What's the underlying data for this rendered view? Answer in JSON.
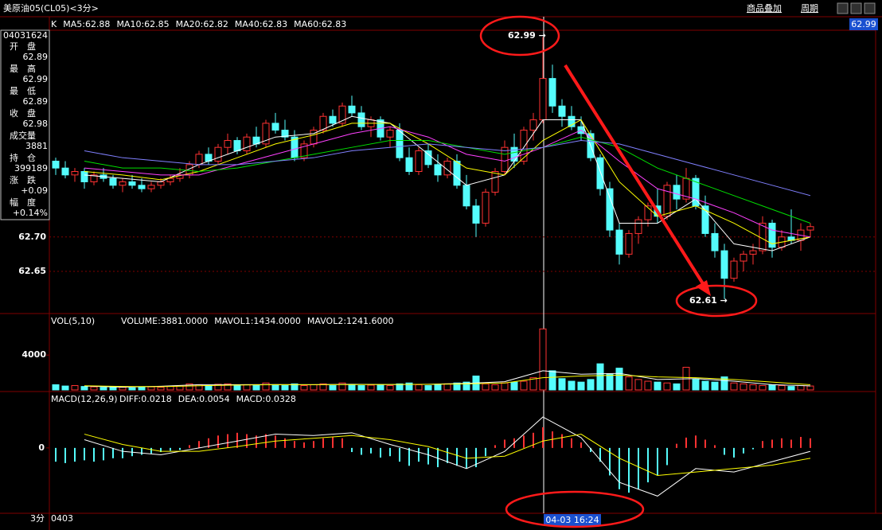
{
  "header": {
    "title": "美原油05(CL05)<3分>",
    "links": [
      "商品叠加",
      "周期"
    ],
    "price_box": "62.99"
  },
  "ma_header": {
    "prefix": "K",
    "items": [
      {
        "label": "MA5:62.88",
        "color": "#ffffff"
      },
      {
        "label": "MA10:62.85",
        "color": "#ffff00"
      },
      {
        "label": "MA20:62.82",
        "color": "#ff40ff"
      },
      {
        "label": "MA40:62.83",
        "color": "#00e000"
      },
      {
        "label": "MA60:62.83",
        "color": "#8080ff"
      }
    ]
  },
  "info": {
    "code": "04031624",
    "items": [
      {
        "label": "开　盘",
        "value": "62.89",
        "color": "#ffffff"
      },
      {
        "label": "最　高",
        "value": "62.99",
        "color": "#ff4040"
      },
      {
        "label": "最　低",
        "value": "62.89",
        "color": "#ffffff"
      },
      {
        "label": "收　盘",
        "value": "62.98",
        "color": "#ff4040"
      },
      {
        "label": "成交量",
        "value": "3881",
        "color": "#ffff00"
      },
      {
        "label": "持　仓",
        "value": "399189",
        "color": "#ffff00"
      },
      {
        "label": "涨　跌",
        "value": "+0.09",
        "color": "#ff4040"
      },
      {
        "label": "幅　度",
        "value": "+0.14%",
        "color": "#ff4040"
      }
    ]
  },
  "price_pane": {
    "type": "candlestick",
    "ylim": [
      62.59,
      63.0
    ],
    "yticks": [
      {
        "value": 62.7,
        "label": "62.70"
      },
      {
        "value": 62.65,
        "label": "62.65"
      }
    ],
    "up_color": "#ff3232",
    "down_color": "#54fcfc",
    "candles": [
      [
        62.81,
        62.815,
        62.79,
        62.8
      ],
      [
        62.8,
        62.81,
        62.785,
        62.79
      ],
      [
        62.79,
        62.8,
        62.78,
        62.795
      ],
      [
        62.795,
        62.8,
        62.77,
        62.78
      ],
      [
        62.78,
        62.795,
        62.775,
        62.79
      ],
      [
        62.79,
        62.8,
        62.78,
        62.785
      ],
      [
        62.785,
        62.79,
        62.77,
        62.775
      ],
      [
        62.775,
        62.785,
        62.765,
        62.78
      ],
      [
        62.78,
        62.79,
        62.77,
        62.775
      ],
      [
        62.775,
        62.785,
        62.765,
        62.77
      ],
      [
        62.77,
        62.78,
        62.765,
        62.775
      ],
      [
        62.775,
        62.785,
        62.77,
        62.78
      ],
      [
        62.78,
        62.79,
        62.775,
        62.785
      ],
      [
        62.785,
        62.8,
        62.78,
        62.79
      ],
      [
        62.79,
        62.81,
        62.785,
        62.805
      ],
      [
        62.805,
        62.825,
        62.8,
        62.82
      ],
      [
        62.82,
        62.83,
        62.805,
        62.81
      ],
      [
        62.81,
        62.835,
        62.805,
        62.83
      ],
      [
        62.83,
        62.85,
        62.82,
        62.84
      ],
      [
        62.84,
        62.845,
        62.82,
        62.825
      ],
      [
        62.825,
        62.85,
        62.82,
        62.845
      ],
      [
        62.845,
        62.86,
        62.83,
        62.835
      ],
      [
        62.835,
        62.87,
        62.83,
        62.865
      ],
      [
        62.865,
        62.88,
        62.85,
        62.855
      ],
      [
        62.855,
        62.87,
        62.84,
        62.845
      ],
      [
        62.845,
        62.855,
        62.81,
        62.815
      ],
      [
        62.815,
        62.84,
        62.81,
        62.835
      ],
      [
        62.835,
        62.86,
        62.83,
        62.855
      ],
      [
        62.855,
        62.88,
        62.85,
        62.875
      ],
      [
        62.875,
        62.885,
        62.86,
        62.865
      ],
      [
        62.865,
        62.895,
        62.86,
        62.89
      ],
      [
        62.89,
        62.905,
        62.875,
        62.88
      ],
      [
        62.88,
        62.89,
        62.855,
        62.86
      ],
      [
        62.86,
        62.875,
        62.845,
        62.87
      ],
      [
        62.87,
        62.875,
        62.84,
        62.845
      ],
      [
        62.845,
        62.86,
        62.83,
        62.855
      ],
      [
        62.855,
        62.865,
        62.81,
        62.815
      ],
      [
        62.815,
        62.83,
        62.79,
        62.795
      ],
      [
        62.795,
        62.83,
        62.79,
        62.825
      ],
      [
        62.825,
        62.835,
        62.8,
        62.805
      ],
      [
        62.805,
        62.82,
        62.78,
        62.79
      ],
      [
        62.79,
        62.815,
        62.785,
        62.81
      ],
      [
        62.81,
        62.82,
        62.77,
        62.775
      ],
      [
        62.775,
        62.79,
        62.74,
        62.745
      ],
      [
        62.745,
        62.755,
        62.7,
        62.72
      ],
      [
        62.72,
        62.77,
        62.715,
        62.765
      ],
      [
        62.765,
        62.8,
        62.76,
        62.795
      ],
      [
        62.795,
        62.84,
        62.79,
        62.83
      ],
      [
        62.83,
        62.85,
        62.8,
        62.81
      ],
      [
        62.81,
        62.86,
        62.805,
        62.855
      ],
      [
        62.855,
        62.88,
        62.84,
        62.87
      ],
      [
        62.87,
        62.99,
        62.865,
        62.93
      ],
      [
        62.93,
        62.95,
        62.88,
        62.89
      ],
      [
        62.89,
        62.9,
        62.86,
        62.875
      ],
      [
        62.875,
        62.89,
        62.855,
        62.86
      ],
      [
        62.86,
        62.875,
        62.84,
        62.85
      ],
      [
        62.85,
        62.855,
        62.81,
        62.815
      ],
      [
        62.815,
        62.82,
        62.76,
        62.77
      ],
      [
        62.77,
        62.78,
        62.7,
        62.71
      ],
      [
        62.71,
        62.72,
        62.66,
        62.675
      ],
      [
        62.675,
        62.71,
        62.67,
        62.705
      ],
      [
        62.705,
        62.73,
        62.69,
        62.725
      ],
      [
        62.725,
        62.75,
        62.715,
        62.745
      ],
      [
        62.745,
        62.77,
        62.72,
        62.73
      ],
      [
        62.73,
        62.78,
        62.725,
        62.775
      ],
      [
        62.775,
        62.79,
        62.74,
        62.755
      ],
      [
        62.755,
        62.8,
        62.75,
        62.785
      ],
      [
        62.785,
        62.79,
        62.74,
        62.745
      ],
      [
        62.745,
        62.76,
        62.7,
        62.705
      ],
      [
        62.705,
        62.72,
        62.67,
        62.68
      ],
      [
        62.68,
        62.69,
        62.61,
        62.64
      ],
      [
        62.64,
        62.67,
        62.635,
        62.665
      ],
      [
        62.665,
        62.68,
        62.65,
        62.675
      ],
      [
        62.675,
        62.69,
        62.66,
        62.68
      ],
      [
        62.68,
        62.73,
        62.675,
        62.72
      ],
      [
        62.72,
        62.725,
        62.67,
        62.685
      ],
      [
        62.685,
        62.71,
        62.68,
        62.7
      ],
      [
        62.7,
        62.74,
        62.69,
        62.695
      ],
      [
        62.695,
        62.72,
        62.68,
        62.71
      ],
      [
        62.71,
        62.72,
        62.7,
        62.715
      ]
    ],
    "ma": [
      {
        "color": "#ffffff",
        "values": [
          62.79,
          62.785,
          62.78,
          62.805,
          62.825,
          62.845,
          62.85,
          62.875,
          62.865,
          62.82,
          62.775,
          62.79,
          62.87,
          62.87,
          62.72,
          62.72,
          62.755,
          62.69,
          62.68,
          62.7
        ]
      },
      {
        "color": "#ffff00",
        "values": [
          62.795,
          62.79,
          62.783,
          62.795,
          62.815,
          62.835,
          62.848,
          62.865,
          62.865,
          62.835,
          62.8,
          62.79,
          62.84,
          62.87,
          62.78,
          62.73,
          62.745,
          62.72,
          62.69,
          62.7
        ]
      },
      {
        "color": "#ff40ff",
        "values": [
          62.8,
          62.795,
          62.79,
          62.79,
          62.805,
          62.82,
          62.835,
          62.85,
          62.86,
          62.845,
          62.82,
          62.81,
          62.83,
          62.855,
          62.81,
          62.77,
          62.755,
          62.735,
          62.71,
          62.7
        ]
      },
      {
        "color": "#00e000",
        "values": [
          62.81,
          62.8,
          62.8,
          62.795,
          62.8,
          62.81,
          62.82,
          62.83,
          62.84,
          62.84,
          62.83,
          62.82,
          62.83,
          62.845,
          62.83,
          62.8,
          62.78,
          62.76,
          62.74,
          62.72
        ]
      },
      {
        "color": "#8080ff",
        "values": [
          62.825,
          62.815,
          62.81,
          62.805,
          62.805,
          62.81,
          62.815,
          62.825,
          62.83,
          62.835,
          62.83,
          62.825,
          62.83,
          62.84,
          62.835,
          62.82,
          62.805,
          62.79,
          62.775,
          62.76
        ]
      }
    ]
  },
  "volume_pane": {
    "type": "bar",
    "title": "VOL(5,10)",
    "readouts": [
      {
        "label": "VOLUME:3881.0000",
        "color": "#ffffff"
      },
      {
        "label": "MAVOL1:1434.0000",
        "color": "#ffffff"
      },
      {
        "label": "MAVOL2:1241.6000",
        "color": "#ffff00"
      }
    ],
    "ylim": [
      0,
      8400
    ],
    "yticks": [
      4000
    ],
    "values": [
      600,
      450,
      500,
      400,
      350,
      300,
      400,
      300,
      250,
      300,
      350,
      300,
      400,
      450,
      700,
      600,
      500,
      650,
      700,
      500,
      600,
      550,
      800,
      600,
      500,
      700,
      500,
      600,
      700,
      500,
      800,
      600,
      500,
      550,
      600,
      500,
      700,
      800,
      600,
      500,
      600,
      700,
      800,
      900,
      1600,
      700,
      600,
      800,
      900,
      1000,
      1400,
      7000,
      2200,
      1300,
      1000,
      900,
      1200,
      3000,
      1800,
      2500,
      1500,
      1200,
      1000,
      900,
      800,
      700,
      2600,
      1200,
      1000,
      900,
      1500,
      800,
      700,
      600,
      500,
      600,
      500,
      400,
      500,
      450
    ],
    "ma": [
      {
        "color": "#ffffff",
        "values": [
          450,
          320,
          420,
          600,
          600,
          620,
          600,
          650,
          620,
          650,
          750,
          950,
          2200,
          1800,
          1900,
          1200,
          1300,
          1000,
          600,
          460
        ]
      },
      {
        "color": "#ffff00",
        "values": [
          480,
          400,
          380,
          480,
          560,
          600,
          610,
          620,
          630,
          640,
          700,
          800,
          1400,
          1600,
          1700,
          1500,
          1400,
          1200,
          900,
          600
        ]
      }
    ]
  },
  "macd_pane": {
    "type": "bar",
    "title": "MACD(12,26,9)",
    "readouts": [
      {
        "label": "DIFF:0.0218",
        "color": "#ffffff"
      },
      {
        "label": "DEA:0.0054",
        "color": "#ffff00"
      },
      {
        "label": "MACD:0.0328",
        "color": "#ffffff"
      }
    ],
    "ylim": [
      -0.095,
      0.075
    ],
    "yticks": [
      0
    ],
    "values": [
      -0.02,
      -0.022,
      -0.02,
      -0.018,
      -0.02,
      -0.018,
      -0.015,
      -0.015,
      -0.012,
      -0.01,
      -0.008,
      -0.006,
      -0.004,
      -0.003,
      0.004,
      0.01,
      0.014,
      0.018,
      0.02,
      0.022,
      0.02,
      0.018,
      0.02,
      0.018,
      0.014,
      0.01,
      0.008,
      0.01,
      0.014,
      0.016,
      0.014,
      -0.006,
      -0.01,
      -0.008,
      -0.014,
      -0.012,
      -0.02,
      -0.026,
      -0.02,
      -0.024,
      -0.028,
      -0.022,
      -0.026,
      -0.03,
      -0.028,
      -0.012,
      0.004,
      0.012,
      0.014,
      0.018,
      0.022,
      0.03,
      0.024,
      0.02,
      0.014,
      0.008,
      -0.006,
      -0.02,
      -0.04,
      -0.06,
      -0.065,
      -0.06,
      -0.05,
      -0.04,
      -0.025,
      0.006,
      0.015,
      0.018,
      0.012,
      0.004,
      -0.01,
      -0.014,
      -0.008,
      -0.002,
      0.01,
      0.012,
      0.014,
      0.012,
      0.016,
      0.014
    ],
    "lines": [
      {
        "color": "#ffffff",
        "values": [
          0.012,
          -0.005,
          -0.01,
          0.0,
          0.01,
          0.02,
          0.018,
          0.022,
          0.005,
          -0.01,
          -0.03,
          -0.005,
          0.045,
          0.015,
          -0.05,
          -0.07,
          -0.03,
          -0.035,
          -0.02,
          -0.005
        ]
      },
      {
        "color": "#ffff00",
        "values": [
          0.02,
          0.005,
          -0.005,
          -0.005,
          0.002,
          0.01,
          0.014,
          0.018,
          0.012,
          0.002,
          -0.015,
          -0.012,
          0.01,
          0.02,
          -0.015,
          -0.04,
          -0.035,
          -0.03,
          -0.025,
          -0.015
        ]
      }
    ]
  },
  "footer": {
    "period": "3分",
    "date": "0403",
    "cursor_time": "04-03 16:24"
  },
  "annotations": {
    "high_label": "62.99 →",
    "low_label": "62.61 →"
  }
}
